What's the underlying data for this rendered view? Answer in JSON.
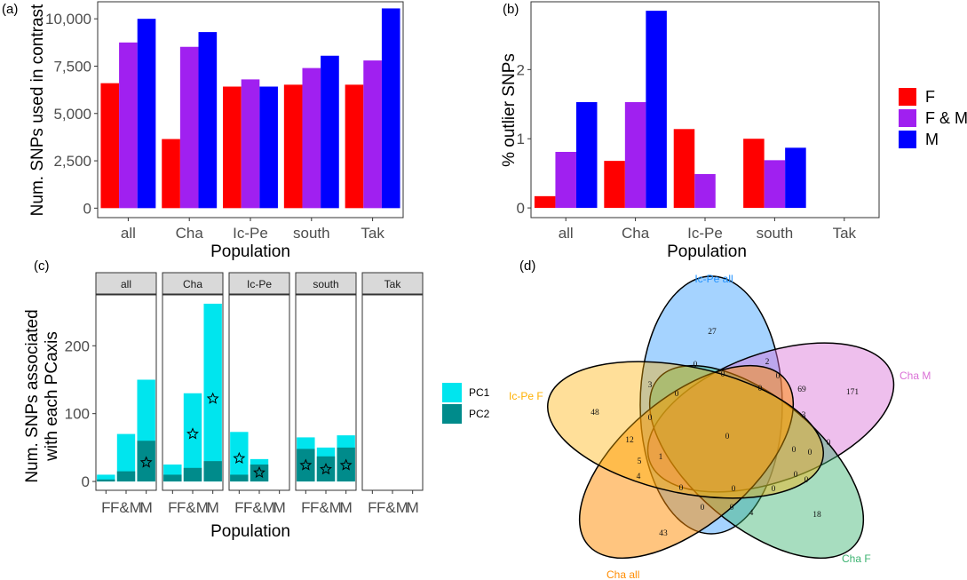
{
  "figure": {
    "panel_labels": [
      "(a)",
      "(b)",
      "(c)",
      "(d)"
    ]
  },
  "chart_data": [
    {
      "panel": "(a)",
      "type": "bar",
      "categories": [
        "all",
        "Cha",
        "Ic-Pe",
        "south",
        "Tak"
      ],
      "series": [
        {
          "name": "F",
          "color": "#ff0000",
          "values": [
            6600,
            3650,
            6420,
            6520,
            6520
          ]
        },
        {
          "name": "F & M",
          "color": "#a020f0",
          "values": [
            8750,
            8520,
            6800,
            7400,
            7800
          ]
        },
        {
          "name": "M",
          "color": "#0000ff",
          "values": [
            10000,
            9300,
            6420,
            8050,
            10550
          ]
        }
      ],
      "xlabel": "Population",
      "ylabel": "Num. SNPs used in contrast",
      "ylim": [
        -500,
        10900
      ],
      "yticks": [
        0,
        2500,
        5000,
        7500,
        10000
      ],
      "ytick_labels": [
        "0",
        "2,500",
        "5,000",
        "7,500",
        "10,000"
      ]
    },
    {
      "panel": "(b)",
      "type": "bar",
      "categories": [
        "all",
        "Cha",
        "Ic-Pe",
        "south",
        "Tak"
      ],
      "series": [
        {
          "name": "F",
          "color": "#ff0000",
          "values": [
            0.17,
            0.68,
            1.14,
            1.0,
            null
          ]
        },
        {
          "name": "F & M",
          "color": "#a020f0",
          "values": [
            0.81,
            1.53,
            0.49,
            0.69,
            null
          ]
        },
        {
          "name": "M",
          "color": "#0000ff",
          "values": [
            1.53,
            2.85,
            null,
            0.87,
            null
          ]
        }
      ],
      "xlabel": "Population",
      "ylabel": "% outlier SNPs",
      "ylim": [
        -0.14,
        2.98
      ],
      "yticks": [
        0,
        1,
        2
      ],
      "ytick_labels": [
        "0",
        "1",
        "2"
      ],
      "legend": {
        "position": "right",
        "entries": [
          "F",
          "F & M",
          "M"
        ]
      }
    },
    {
      "panel": "(c)",
      "type": "bar",
      "facets": [
        "all",
        "Cha",
        "Ic-Pe",
        "south",
        "Tak"
      ],
      "categories": [
        "F",
        "F&M",
        "M"
      ],
      "series": [
        {
          "name": "PC1",
          "color": "#00e5ee",
          "values": [
            [
              10,
              70,
              150
            ],
            [
              25,
              130,
              262
            ],
            [
              73,
              33,
              null
            ],
            [
              65,
              50,
              68
            ],
            [
              null,
              null,
              null
            ]
          ]
        },
        {
          "name": "PC2",
          "color": "#008b8b",
          "values": [
            [
              3,
              15,
              60
            ],
            [
              10,
              20,
              30
            ],
            [
              10,
              25,
              null
            ],
            [
              48,
              37,
              50
            ],
            [
              null,
              null,
              null
            ]
          ]
        }
      ],
      "stars": [
        [
          null,
          null,
          28
        ],
        [
          null,
          70,
          122
        ],
        [
          34,
          13,
          null
        ],
        [
          24,
          18,
          24
        ],
        [
          null,
          null,
          null
        ]
      ],
      "xlabel": "Population",
      "ylabel": [
        "Num. SNPs associated",
        "with each PCaxis"
      ],
      "ylim": [
        -13,
        275
      ],
      "yticks": [
        0,
        100,
        200
      ],
      "ytick_labels": [
        "0",
        "100",
        "200"
      ],
      "legend": {
        "position": "right",
        "entries": [
          "PC1",
          "PC2"
        ]
      }
    },
    {
      "panel": "(d)",
      "type": "venn",
      "sets": [
        {
          "name": "Ic-Pe all",
          "color": "#1e90ff"
        },
        {
          "name": "Cha M",
          "color": "#da70d6"
        },
        {
          "name": "Cha F",
          "color": "#3cb371"
        },
        {
          "name": "Cha all",
          "color": "#ff8c00"
        },
        {
          "name": "Ic-Pe F",
          "color": "#ffb000"
        }
      ],
      "region_counts": [
        "27",
        "2",
        "0",
        "3",
        "0",
        "0",
        "0",
        "0",
        "69",
        "171",
        "48",
        "0",
        "3",
        "12",
        "0",
        "1",
        "5",
        "0",
        "0",
        "0",
        "4",
        "0",
        "0",
        "0",
        "0",
        "0",
        "0",
        "0",
        "4",
        "43",
        "18"
      ]
    }
  ]
}
